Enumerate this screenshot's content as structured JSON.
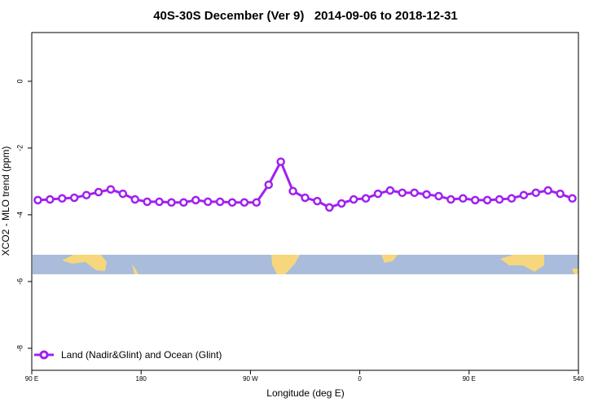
{
  "chart_data": {
    "type": "line",
    "title": "40S-30S December (Ver 9)   2014-09-06 to 2018-12-31",
    "x_label": "Longitude (deg E)",
    "y_label": "XCO2 - MLO trend (ppm)",
    "x": [
      95,
      105,
      115,
      125,
      135,
      145,
      155,
      165,
      175,
      185,
      195,
      205,
      215,
      225,
      235,
      245,
      255,
      265,
      275,
      285,
      295,
      305,
      315,
      325,
      335,
      345,
      355,
      365,
      375,
      385,
      395,
      405,
      415,
      425,
      435,
      445,
      455,
      465,
      475,
      485,
      495,
      505,
      515,
      525,
      535
    ],
    "series": [
      {
        "name": "Land (Nadir&Glint) and Ocean (Glint)",
        "color": "#a020f0",
        "values": [
          -3.56,
          -3.54,
          -3.51,
          -3.49,
          -3.41,
          -3.32,
          -3.24,
          -3.37,
          -3.54,
          -3.61,
          -3.61,
          -3.63,
          -3.63,
          -3.56,
          -3.61,
          -3.61,
          -3.63,
          -3.63,
          -3.63,
          -3.1,
          -2.41,
          -3.29,
          -3.49,
          -3.59,
          -3.78,
          -3.66,
          -3.54,
          -3.51,
          -3.37,
          -3.27,
          -3.34,
          -3.34,
          -3.39,
          -3.44,
          -3.54,
          -3.51,
          -3.56,
          -3.56,
          -3.54,
          -3.51,
          -3.41,
          -3.34,
          -3.27,
          -3.37,
          -3.51
        ]
      }
    ],
    "xlim": [
      90,
      540
    ],
    "xticks": [
      {
        "value": 90,
        "label": "90 E"
      },
      180,
      {
        "value": 270,
        "label": "90 W"
      },
      {
        "value": 360,
        "label": "0"
      },
      {
        "value": 450,
        "label": "90 E"
      },
      540
    ],
    "ylim": [
      -8.66,
      1.46
    ],
    "yticks": [
      0,
      -2,
      -4,
      -6,
      -8
    ],
    "grid": false,
    "legend_position": "bottom-left"
  }
}
